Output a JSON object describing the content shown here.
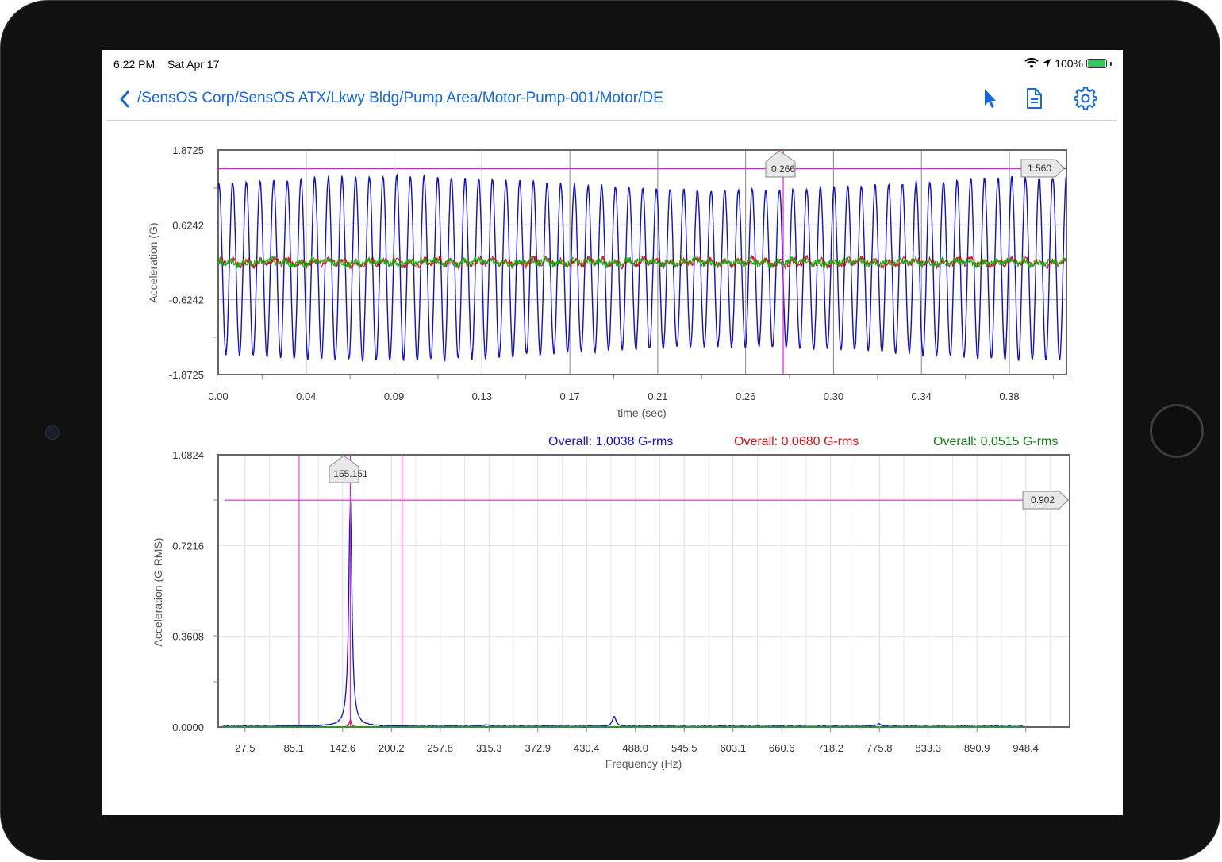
{
  "status": {
    "time": "6:22 PM",
    "date": "Sat Apr 17",
    "battery": "100%"
  },
  "nav": {
    "path": "/SensOS Corp/SensOS ATX/Lkwy Bldg/Pump Area/Motor-Pump-001/Motor/DE",
    "icons": [
      "chevron-left-icon",
      "pointer-icon",
      "document-icon",
      "gear-icon"
    ]
  },
  "colors": {
    "accent": "#1468e6",
    "series_x": "#1010d0",
    "series_y": "#e01010",
    "series_z": "#10b010",
    "cursor": "#e020e0"
  },
  "chart_data": [
    {
      "type": "line",
      "xlabel": "time (sec)",
      "ylabel": "Acceleration (G)",
      "xlim": [
        0,
        0.4
      ],
      "ylim": [
        -1.8725,
        1.8725
      ],
      "x_ticks": [
        "0.00",
        "0.04",
        "0.09",
        "0.13",
        "0.17",
        "0.21",
        "0.26",
        "0.30",
        "0.34",
        "0.38"
      ],
      "y_ticks": [
        "1.8725",
        "0.6242",
        "-0.6242",
        "-1.8725"
      ],
      "cursor_x": {
        "value": 0.266,
        "label": "0.266"
      },
      "cursor_y": {
        "value": 1.56,
        "label": "1.560"
      },
      "series": [
        {
          "color": "#1010d0",
          "frequency_hz": 155.151,
          "amplitude": 1.42,
          "offset": -0.1,
          "noise": 0.06
        },
        {
          "color": "#e01010",
          "amplitude": 0.07,
          "noise": 0.05
        },
        {
          "color": "#10b010",
          "amplitude": 0.05,
          "noise": 0.05
        }
      ],
      "grid": true
    },
    {
      "type": "line",
      "xlabel": "Frequency (Hz)",
      "ylabel": "Acceleration (G-RMS)",
      "xlim": [
        0,
        1000
      ],
      "ylim": [
        0,
        1.0824
      ],
      "x_ticks": [
        "27.5",
        "85.1",
        "142.6",
        "200.2",
        "257.8",
        "315.3",
        "372.9",
        "430.4",
        "488.0",
        "545.5",
        "603.1",
        "660.6",
        "718.2",
        "775.8",
        "833.3",
        "890.9",
        "948.4"
      ],
      "y_ticks": [
        "1.0824",
        "0.7216",
        "0.3608",
        "0.0000"
      ],
      "overall": [
        {
          "label": "Overall: 1.0038 G-rms",
          "color": "#1010d0"
        },
        {
          "label": "Overall: 0.0680 G-rms",
          "color": "#e01010"
        },
        {
          "label": "Overall: 0.0515 G-rms",
          "color": "#108010"
        }
      ],
      "cursor_x": {
        "value": 155.151,
        "label": "155.151"
      },
      "cursor_y": {
        "value": 0.902,
        "label": "0.902"
      },
      "band_lines_hz": [
        95,
        216
      ],
      "peaks": [
        {
          "series": "blue",
          "freq": 155.151,
          "amp": 0.902
        },
        {
          "series": "blue",
          "freq": 465,
          "amp": 0.04
        },
        {
          "series": "blue",
          "freq": 775.8,
          "amp": 0.01
        },
        {
          "series": "red",
          "freq": 155.151,
          "amp": 0.03
        }
      ],
      "grid": true
    }
  ]
}
